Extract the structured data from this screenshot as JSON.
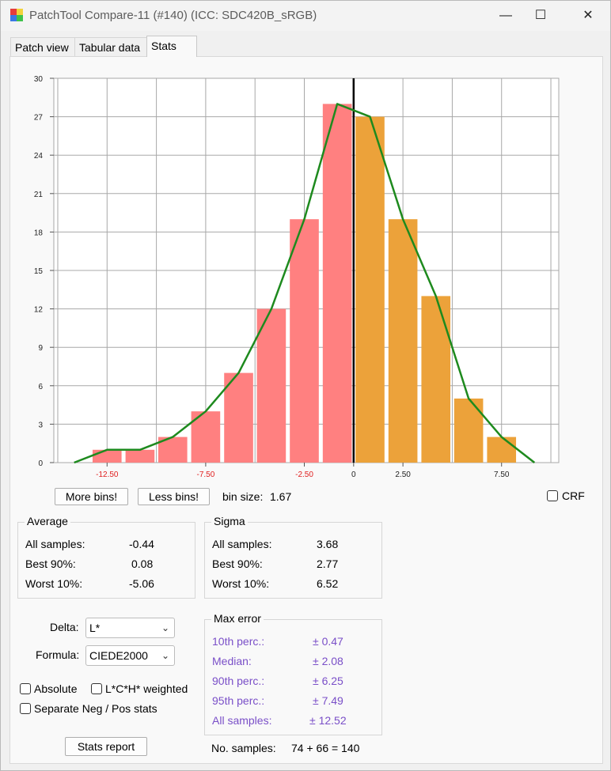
{
  "window": {
    "title": "PatchTool Compare-11 (#140) (ICC: SDC420B_sRGB)",
    "minimize": "—",
    "maximize": "☐",
    "close": "✕"
  },
  "tabs": [
    {
      "label": "Patch view",
      "active": false
    },
    {
      "label": "Tabular data",
      "active": false
    },
    {
      "label": "Stats",
      "active": true
    }
  ],
  "chart_data": {
    "type": "bar",
    "x_ticks": [
      "-12.50",
      "-7.50",
      "-2.50",
      "0",
      "2.50",
      "7.50"
    ],
    "x_tick_values": [
      -12.5,
      -7.5,
      -2.5,
      0,
      2.5,
      7.5
    ],
    "y_ticks": [
      "0",
      "3",
      "6",
      "9",
      "12",
      "15",
      "18",
      "21",
      "24",
      "27",
      "30"
    ],
    "ylim": [
      0,
      30
    ],
    "xlim": [
      -15.2,
      10.4
    ],
    "bin_size": 1.67,
    "negative_color": "#ff8080",
    "positive_color": "#eca23a",
    "curve_color": "#1e8a1e",
    "bins": [
      {
        "center": -12.5,
        "value": 1,
        "side": "neg"
      },
      {
        "center": -10.83,
        "value": 1,
        "side": "neg"
      },
      {
        "center": -9.17,
        "value": 2,
        "side": "neg"
      },
      {
        "center": -7.5,
        "value": 4,
        "side": "neg"
      },
      {
        "center": -5.83,
        "value": 7,
        "side": "neg"
      },
      {
        "center": -4.17,
        "value": 12,
        "side": "neg"
      },
      {
        "center": -2.5,
        "value": 19,
        "side": "neg"
      },
      {
        "center": -0.83,
        "value": 28,
        "side": "neg"
      },
      {
        "center": 0.83,
        "value": 27,
        "side": "pos"
      },
      {
        "center": 2.5,
        "value": 19,
        "side": "pos"
      },
      {
        "center": 4.17,
        "value": 13,
        "side": "pos"
      },
      {
        "center": 5.83,
        "value": 5,
        "side": "pos"
      },
      {
        "center": 7.5,
        "value": 2,
        "side": "pos"
      }
    ],
    "curve": [
      {
        "x": -14.17,
        "y": 0
      },
      {
        "x": -12.5,
        "y": 1
      },
      {
        "x": -10.83,
        "y": 1
      },
      {
        "x": -9.17,
        "y": 2
      },
      {
        "x": -7.5,
        "y": 4
      },
      {
        "x": -5.83,
        "y": 7
      },
      {
        "x": -4.17,
        "y": 12
      },
      {
        "x": -2.5,
        "y": 19
      },
      {
        "x": -0.83,
        "y": 28
      },
      {
        "x": 0.83,
        "y": 27
      },
      {
        "x": 2.5,
        "y": 19
      },
      {
        "x": 4.17,
        "y": 13
      },
      {
        "x": 5.83,
        "y": 5
      },
      {
        "x": 7.5,
        "y": 2
      },
      {
        "x": 9.17,
        "y": 0
      }
    ],
    "zero_line": 0,
    "grid": true
  },
  "controls": {
    "more_bins": "More bins!",
    "less_bins": "Less bins!",
    "bin_size_label": "bin size:",
    "bin_size_value": "1.67",
    "crf_label": "CRF"
  },
  "average": {
    "title": "Average",
    "rows": [
      {
        "label": "All samples:",
        "value": "-0.44"
      },
      {
        "label": "Best 90%:",
        "value": "0.08"
      },
      {
        "label": "Worst 10%:",
        "value": "-5.06"
      }
    ]
  },
  "sigma": {
    "title": "Sigma",
    "rows": [
      {
        "label": "All samples:",
        "value": "3.68"
      },
      {
        "label": "Best 90%:",
        "value": "2.77"
      },
      {
        "label": "Worst 10%:",
        "value": "6.52"
      }
    ]
  },
  "options": {
    "delta_label": "Delta:",
    "delta_value": "L*",
    "formula_label": "Formula:",
    "formula_value": "CIEDE2000",
    "absolute_label": "Absolute",
    "lch_label": "L*C*H* weighted",
    "separate_label": "Separate Neg / Pos stats",
    "stats_report": "Stats report"
  },
  "max_error": {
    "title": "Max error",
    "rows": [
      {
        "label": "10th perc.:",
        "value": "± 0.47"
      },
      {
        "label": "Median:",
        "value": "± 2.08"
      },
      {
        "label": "90th perc.:",
        "value": "± 6.25"
      },
      {
        "label": "95th perc.:",
        "value": "± 7.49"
      },
      {
        "label": "All samples:",
        "value": "± 12.52"
      }
    ]
  },
  "samples": {
    "label": "No. samples:",
    "value": "74 + 66 = 140"
  }
}
